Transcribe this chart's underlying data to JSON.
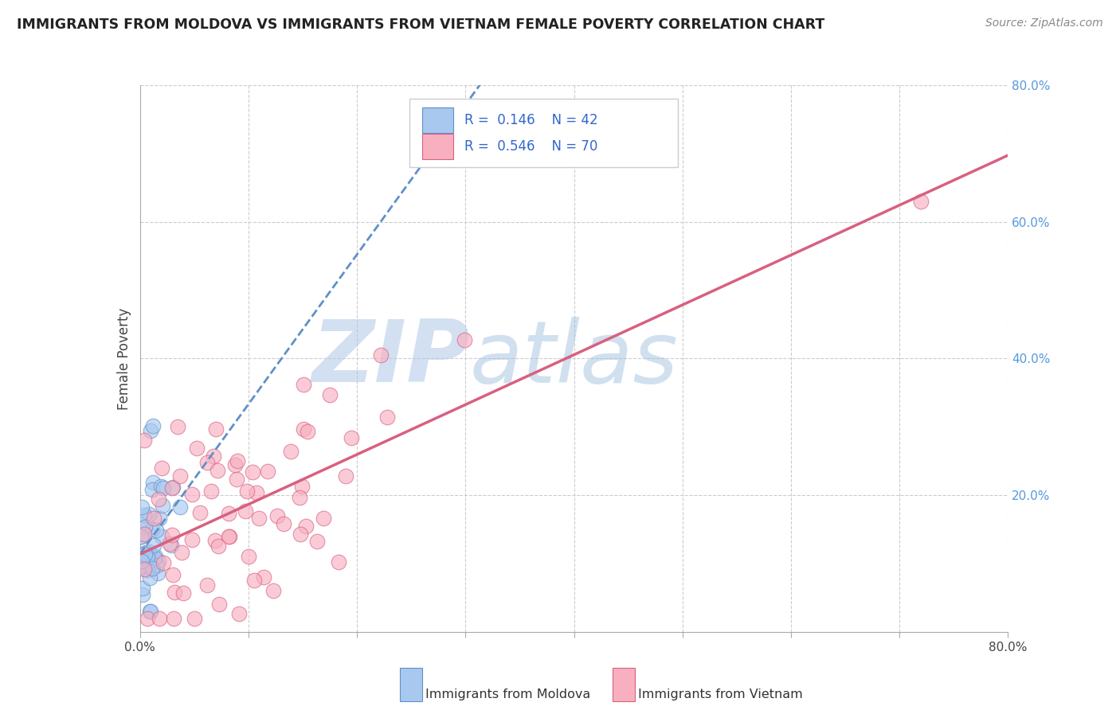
{
  "title": "IMMIGRANTS FROM MOLDOVA VS IMMIGRANTS FROM VIETNAM FEMALE POVERTY CORRELATION CHART",
  "source": "Source: ZipAtlas.com",
  "ylabel": "Female Poverty",
  "xlim": [
    0.0,
    0.8
  ],
  "ylim": [
    0.0,
    0.8
  ],
  "moldova_color": "#A8C8F0",
  "moldova_edge": "#6090C8",
  "vietnam_color": "#F8B0C0",
  "vietnam_edge": "#D86080",
  "moldova_R": 0.146,
  "moldova_N": 42,
  "vietnam_R": 0.546,
  "vietnam_N": 70,
  "watermark_zip": "ZIP",
  "watermark_atlas": "atlas",
  "background_color": "#ffffff",
  "grid_color": "#cccccc",
  "legend_label_moldova": "Immigrants from Moldova",
  "legend_label_vietnam": "Immigrants from Vietnam",
  "title_color": "#222222",
  "source_color": "#888888",
  "ylabel_color": "#444444",
  "tick_color_x": "#444444",
  "tick_color_y": "#5599DD"
}
